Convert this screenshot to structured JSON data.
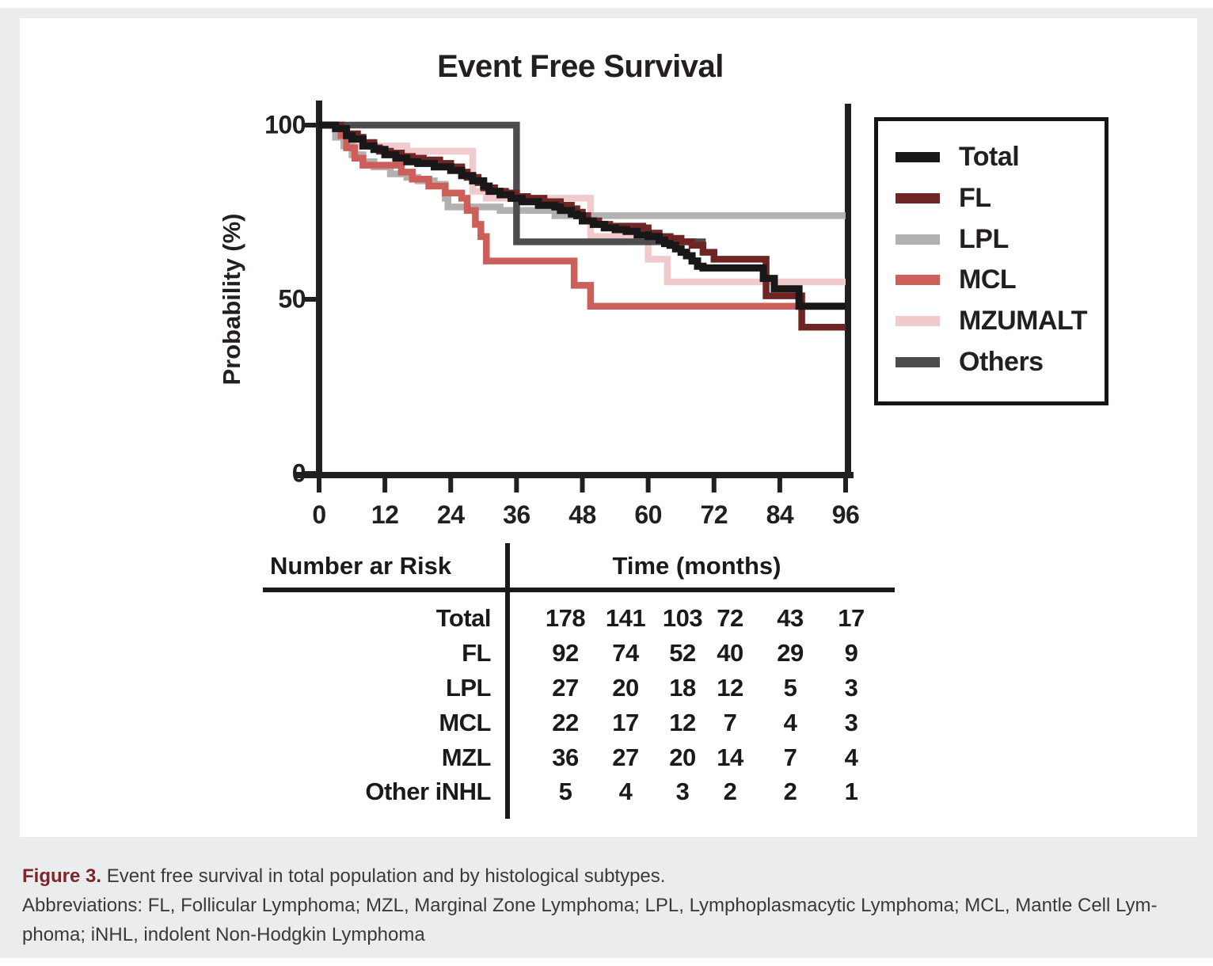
{
  "figure": {
    "title": "Event Free Survival",
    "y_axis": {
      "label": "Probability (%)"
    },
    "legend": {
      "items": [
        {
          "label": "Total",
          "color": "#1a1718"
        },
        {
          "label": "FL",
          "color": "#6f2523"
        },
        {
          "label": "LPL",
          "color": "#b2b0b0"
        },
        {
          "label": "MCL",
          "color": "#cd5f5b"
        },
        {
          "label": "MZUMALT",
          "color": "#f0cacd"
        },
        {
          "label": "Others",
          "color": "#4d4d4f"
        }
      ]
    }
  },
  "chart_data": {
    "type": "line",
    "subtype": "kaplan-meier-step",
    "title": "Event Free Survival",
    "xlabel": "Time (months)",
    "ylabel": "Probability (%)",
    "xlim": [
      0,
      96
    ],
    "ylim": [
      0,
      100
    ],
    "x_ticks": [
      0,
      12,
      24,
      36,
      48,
      60,
      72,
      84,
      96
    ],
    "y_ticks": [
      100,
      50,
      0
    ],
    "grid": false,
    "legend_position": "right",
    "series": [
      {
        "name": "MZUMALT",
        "color": "#f0cacd",
        "points": [
          [
            0,
            100
          ],
          [
            4,
            97.5
          ],
          [
            6,
            95.5
          ],
          [
            7,
            94
          ],
          [
            16,
            92.5
          ],
          [
            28,
            81
          ],
          [
            30.5,
            79
          ],
          [
            49.5,
            68
          ],
          [
            60,
            61.5
          ],
          [
            63.5,
            55
          ],
          [
            96,
            55
          ]
        ]
      },
      {
        "name": "LPL",
        "color": "#b2b0b0",
        "points": [
          [
            0,
            100
          ],
          [
            3,
            96.5
          ],
          [
            4.5,
            94
          ],
          [
            6,
            91.5
          ],
          [
            8,
            89.5
          ],
          [
            10,
            88
          ],
          [
            13,
            86
          ],
          [
            16,
            85
          ],
          [
            18,
            84
          ],
          [
            21,
            83
          ],
          [
            23,
            79
          ],
          [
            23.5,
            76.5
          ],
          [
            33,
            75.5
          ],
          [
            43,
            74
          ],
          [
            96,
            74
          ]
        ]
      },
      {
        "name": "MCL",
        "color": "#cd5f5b",
        "points": [
          [
            0,
            100
          ],
          [
            4,
            97
          ],
          [
            5,
            93.5
          ],
          [
            6.5,
            90.5
          ],
          [
            8,
            88.5
          ],
          [
            15,
            86.5
          ],
          [
            17,
            84.5
          ],
          [
            20,
            82.5
          ],
          [
            23,
            80.5
          ],
          [
            26,
            79
          ],
          [
            27,
            75.5
          ],
          [
            28.5,
            71.5
          ],
          [
            29.5,
            68
          ],
          [
            30.5,
            61
          ],
          [
            46,
            61
          ],
          [
            46.5,
            54
          ],
          [
            49.5,
            48
          ],
          [
            96,
            48
          ]
        ]
      },
      {
        "name": "Others",
        "color": "#4d4d4f",
        "points": [
          [
            0,
            100
          ],
          [
            36,
            66.5
          ],
          [
            70.5,
            66.5
          ]
        ]
      },
      {
        "name": "FL",
        "color": "#6f2523",
        "points": [
          [
            0,
            100
          ],
          [
            4,
            99
          ],
          [
            5,
            97.5
          ],
          [
            7,
            96.5
          ],
          [
            8,
            95
          ],
          [
            10,
            93.5
          ],
          [
            11,
            92.5
          ],
          [
            13,
            92
          ],
          [
            15,
            91
          ],
          [
            17,
            90.5
          ],
          [
            19,
            90
          ],
          [
            22,
            89
          ],
          [
            24,
            88
          ],
          [
            26,
            86.5
          ],
          [
            27,
            85
          ],
          [
            29,
            83.5
          ],
          [
            30,
            82
          ],
          [
            32,
            81
          ],
          [
            34,
            80.5
          ],
          [
            36,
            79.5
          ],
          [
            38,
            79
          ],
          [
            41,
            78
          ],
          [
            44,
            77
          ],
          [
            46,
            76
          ],
          [
            47,
            75
          ],
          [
            48,
            74
          ],
          [
            49,
            72.5
          ],
          [
            51,
            71.5
          ],
          [
            53,
            71
          ],
          [
            59,
            70.5
          ],
          [
            60,
            69
          ],
          [
            62,
            68
          ],
          [
            64,
            67.5
          ],
          [
            66,
            66.5
          ],
          [
            68,
            65.5
          ],
          [
            70,
            63.5
          ],
          [
            72,
            61.5
          ],
          [
            81.5,
            51
          ],
          [
            88,
            42
          ],
          [
            96,
            42
          ]
        ]
      },
      {
        "name": "Total",
        "color": "#1a1718",
        "points": [
          [
            0,
            100
          ],
          [
            3,
            99
          ],
          [
            5,
            97
          ],
          [
            6,
            96
          ],
          [
            8,
            94
          ],
          [
            10,
            93
          ],
          [
            12,
            91.5
          ],
          [
            14,
            90.5
          ],
          [
            16,
            89.5
          ],
          [
            18,
            89
          ],
          [
            21,
            88
          ],
          [
            24,
            87
          ],
          [
            26,
            85.5
          ],
          [
            28,
            84
          ],
          [
            30,
            82.5
          ],
          [
            31,
            81
          ],
          [
            33,
            80
          ],
          [
            35,
            79
          ],
          [
            37,
            78
          ],
          [
            40,
            77
          ],
          [
            43,
            76.5
          ],
          [
            44,
            75.5
          ],
          [
            46,
            74.5
          ],
          [
            47,
            74
          ],
          [
            48,
            72.5
          ],
          [
            50,
            71.5
          ],
          [
            52,
            70.5
          ],
          [
            54,
            70
          ],
          [
            56,
            69.5
          ],
          [
            58,
            68.5
          ],
          [
            60,
            68
          ],
          [
            62,
            67
          ],
          [
            63,
            66
          ],
          [
            64,
            65.5
          ],
          [
            65,
            64.5
          ],
          [
            66,
            63.5
          ],
          [
            67,
            62.5
          ],
          [
            68,
            61
          ],
          [
            69,
            59.5
          ],
          [
            70,
            59
          ],
          [
            81,
            56
          ],
          [
            83,
            53
          ],
          [
            87.5,
            48
          ],
          [
            96,
            48
          ]
        ]
      }
    ]
  },
  "risk_table": {
    "header_left": "Number ar Risk",
    "header_right": "Time (months)",
    "rows": [
      {
        "label": "Total",
        "values": [
          "178",
          "141",
          "103",
          "72",
          "43",
          "17"
        ]
      },
      {
        "label": "FL",
        "values": [
          "92",
          "74",
          "52",
          "40",
          "29",
          "9"
        ]
      },
      {
        "label": "LPL",
        "values": [
          "27",
          "20",
          "18",
          "12",
          "5",
          "3"
        ]
      },
      {
        "label": "MCL",
        "values": [
          "22",
          "17",
          "12",
          "7",
          "4",
          "3"
        ]
      },
      {
        "label": "MZL",
        "values": [
          "36",
          "27",
          "20",
          "14",
          "7",
          "4"
        ]
      },
      {
        "label": "Other iNHL",
        "values": [
          "5",
          "4",
          "3",
          "2",
          "2",
          "1"
        ]
      }
    ]
  },
  "caption": {
    "label": "Figure 3.",
    "label_color": "#7f2527",
    "text": " Event free survival in total population and by histological subtypes.",
    "abbrev_line1": "Abbreviations: FL, Follicular Lymphoma; MZL, Marginal Zone Lymphoma; LPL, Lymphoplasmacytic Lymphoma; MCL, Mantle Cell Lym-",
    "abbrev_line2": "phoma; iNHL, indolent Non-Hodgkin Lymphoma"
  }
}
